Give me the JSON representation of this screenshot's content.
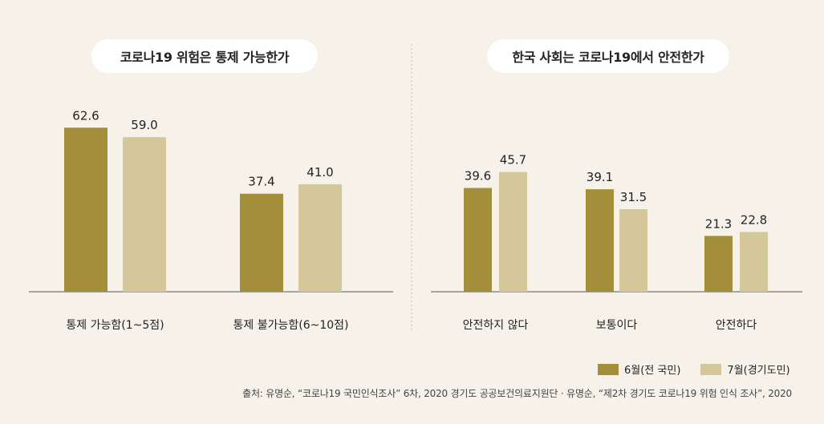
{
  "colors": {
    "june": "#a38f3a",
    "july": "#d4c89a",
    "axis": "#555555",
    "divider": "#bdbdbd"
  },
  "legend": {
    "june": "6월(전 국민)",
    "july": "7월(경기도민)"
  },
  "source": "출처: 유명순, “코로나19 국민인식조사” 6차, 2020 경기도 공공보건의료지원단 · 유명순, “제2차 경기도 코로나19 위험 인식 조사”, 2020",
  "chart_data": [
    {
      "type": "bar",
      "title": "코로나19 위험은 통제 가능한가",
      "categories": [
        "통제 가능함(1~5점)",
        "통제 불가능함(6~10점)"
      ],
      "series": [
        {
          "name": "6월(전 국민)",
          "values": [
            62.6,
            37.4
          ]
        },
        {
          "name": "7월(경기도민)",
          "values": [
            59.0,
            41.0
          ]
        }
      ],
      "value_labels": [
        [
          "62.6",
          "37.4"
        ],
        [
          "59.0",
          "41.0"
        ]
      ],
      "ylim": [
        0,
        70
      ],
      "grid": false
    },
    {
      "type": "bar",
      "title": "한국 사회는 코로나19에서 안전한가",
      "categories": [
        "안전하지 않다",
        "보통이다",
        "안전하다"
      ],
      "series": [
        {
          "name": "6월(전 국민)",
          "values": [
            39.6,
            39.1,
            21.3
          ]
        },
        {
          "name": "7월(경기도민)",
          "values": [
            45.7,
            31.5,
            22.8
          ]
        }
      ],
      "value_labels": [
        [
          "39.6",
          "39.1",
          "21.3"
        ],
        [
          "45.7",
          "31.5",
          "22.8"
        ]
      ],
      "ylim": [
        0,
        70
      ],
      "grid": false
    }
  ]
}
